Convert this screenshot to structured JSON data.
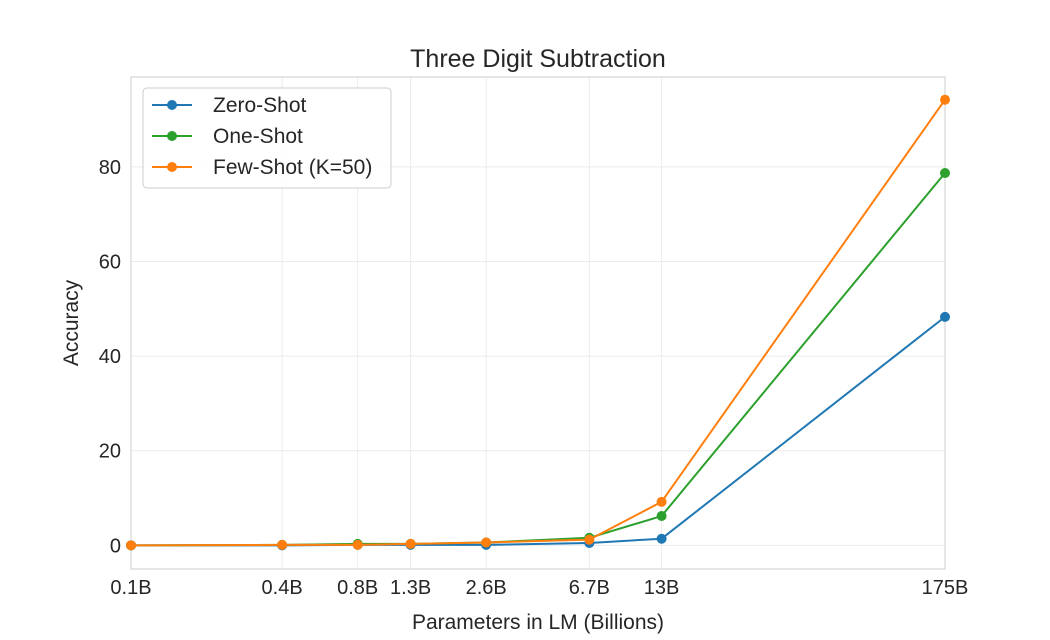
{
  "chart_data": {
    "type": "line",
    "title": "Three Digit Subtraction",
    "xlabel": "Parameters in LM (Billions)",
    "ylabel": "Accuracy",
    "x_scale": "log",
    "x": [
      0.1,
      0.4,
      0.8,
      1.3,
      2.6,
      6.7,
      13,
      175
    ],
    "x_tick_labels": [
      "0.1B",
      "0.4B",
      "0.8B",
      "1.3B",
      "2.6B",
      "6.7B",
      "13B",
      "175B"
    ],
    "y_ticks": [
      0,
      20,
      40,
      60,
      80
    ],
    "ylim": [
      -5,
      99
    ],
    "grid": true,
    "legend_position": "top-left",
    "series": [
      {
        "name": "Zero-Shot",
        "color": "#1f77b4",
        "values": [
          0.0,
          0.0,
          0.1,
          0.1,
          0.1,
          0.5,
          1.4,
          48.3
        ]
      },
      {
        "name": "One-Shot",
        "color": "#2ca02c",
        "values": [
          0.0,
          0.1,
          0.3,
          0.3,
          0.6,
          1.6,
          6.2,
          78.7
        ]
      },
      {
        "name": "Few-Shot (K=50)",
        "color": "#ff7f0e",
        "values": [
          0.0,
          0.1,
          0.1,
          0.3,
          0.6,
          1.2,
          9.2,
          94.2
        ]
      }
    ]
  }
}
